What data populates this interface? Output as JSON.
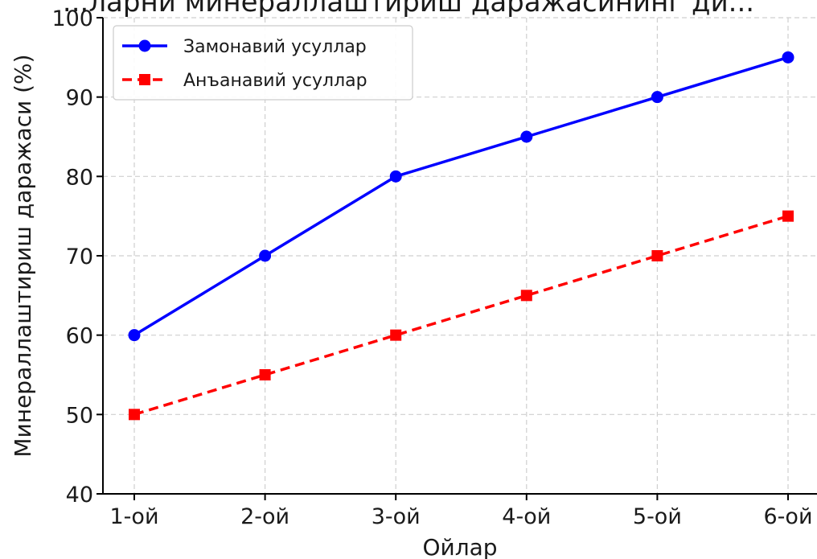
{
  "chart_data": {
    "type": "line",
    "title": "...ларни минераллаштириш даражасининг ди...",
    "xlabel": "Ойлар",
    "ylabel": "Минераллаштириш даражаси (%)",
    "categories": [
      "1-ой",
      "2-ой",
      "3-ой",
      "4-ой",
      "5-ой",
      "6-ой"
    ],
    "ylim": [
      40,
      100
    ],
    "yticks": [
      40,
      50,
      60,
      70,
      80,
      90,
      100
    ],
    "grid": true,
    "legend_position": "top-left",
    "series": [
      {
        "name": "Замонавий усуллар",
        "values": [
          60,
          70,
          80,
          85,
          90,
          95
        ],
        "color": "#0000ff",
        "line_style": "solid",
        "marker": "circle"
      },
      {
        "name": "Анъанавий усуллар",
        "values": [
          50,
          55,
          60,
          65,
          70,
          75
        ],
        "color": "#ff0000",
        "line_style": "dashed",
        "marker": "square"
      }
    ]
  }
}
